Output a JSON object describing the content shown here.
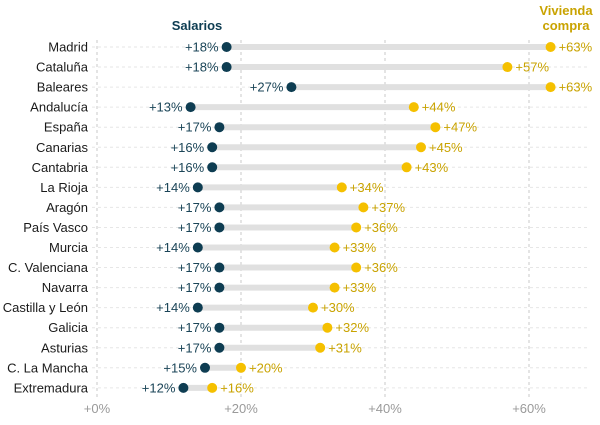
{
  "chart_data": {
    "type": "dumbbell",
    "title": "",
    "legend": {
      "salarios": "Salarios",
      "vivienda_line1": "Vivienda",
      "vivienda_line2": "compra"
    },
    "colors": {
      "salarios": "#0e3d52",
      "vivienda": "#f5c000",
      "salarios_text": "#1b4558",
      "vivienda_text": "#c9a300"
    },
    "xlim": [
      0,
      70
    ],
    "xticks": [
      {
        "value": 0,
        "label": "+0%"
      },
      {
        "value": 20,
        "label": "+20%"
      },
      {
        "value": 40,
        "label": "+40%"
      },
      {
        "value": 60,
        "label": "+60%"
      }
    ],
    "rows": [
      {
        "region": "Madrid",
        "salarios": 18,
        "salarios_label": "+18%",
        "vivienda": 63,
        "vivienda_label": "+63%"
      },
      {
        "region": "Cataluña",
        "salarios": 18,
        "salarios_label": "+18%",
        "vivienda": 57,
        "vivienda_label": "+57%"
      },
      {
        "region": "Baleares",
        "salarios": 27,
        "salarios_label": "+27%",
        "vivienda": 63,
        "vivienda_label": "+63%"
      },
      {
        "region": "Andalucía",
        "salarios": 13,
        "salarios_label": "+13%",
        "vivienda": 44,
        "vivienda_label": "+44%"
      },
      {
        "region": "España",
        "salarios": 17,
        "salarios_label": "+17%",
        "vivienda": 47,
        "vivienda_label": "+47%"
      },
      {
        "region": "Canarias",
        "salarios": 16,
        "salarios_label": "+16%",
        "vivienda": 45,
        "vivienda_label": "+45%"
      },
      {
        "region": "Cantabria",
        "salarios": 16,
        "salarios_label": "+16%",
        "vivienda": 43,
        "vivienda_label": "+43%"
      },
      {
        "region": "La Rioja",
        "salarios": 14,
        "salarios_label": "+14%",
        "vivienda": 34,
        "vivienda_label": "+34%"
      },
      {
        "region": "Aragón",
        "salarios": 17,
        "salarios_label": "+17%",
        "vivienda": 37,
        "vivienda_label": "+37%"
      },
      {
        "region": "País Vasco",
        "salarios": 17,
        "salarios_label": "+17%",
        "vivienda": 36,
        "vivienda_label": "+36%"
      },
      {
        "region": "Murcia",
        "salarios": 14,
        "salarios_label": "+14%",
        "vivienda": 33,
        "vivienda_label": "+33%"
      },
      {
        "region": "C. Valenciana",
        "salarios": 17,
        "salarios_label": "+17%",
        "vivienda": 36,
        "vivienda_label": "+36%"
      },
      {
        "region": "Navarra",
        "salarios": 17,
        "salarios_label": "+17%",
        "vivienda": 33,
        "vivienda_label": "+33%"
      },
      {
        "region": "Castilla y León",
        "salarios": 14,
        "salarios_label": "+14%",
        "vivienda": 30,
        "vivienda_label": "+30%"
      },
      {
        "region": "Galicia",
        "salarios": 17,
        "salarios_label": "+17%",
        "vivienda": 32,
        "vivienda_label": "+32%"
      },
      {
        "region": "Asturias",
        "salarios": 17,
        "salarios_label": "+17%",
        "vivienda": 31,
        "vivienda_label": "+31%"
      },
      {
        "region": "C. La Mancha",
        "salarios": 15,
        "salarios_label": "+15%",
        "vivienda": 20,
        "vivienda_label": "+20%"
      },
      {
        "region": "Extremadura",
        "salarios": 12,
        "salarios_label": "+12%",
        "vivienda": 16,
        "vivienda_label": "+16%"
      }
    ]
  }
}
